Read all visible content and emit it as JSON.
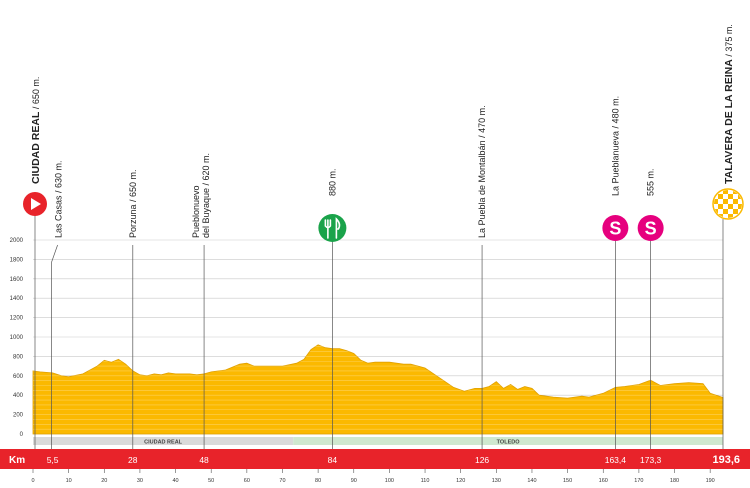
{
  "chart_data": {
    "type": "area",
    "xlabel": "Km",
    "x_ticks": [
      0,
      10,
      20,
      30,
      40,
      50,
      60,
      70,
      80,
      90,
      100,
      110,
      120,
      130,
      140,
      150,
      160,
      170,
      180,
      190
    ],
    "y_ticks": [
      0,
      200,
      400,
      600,
      800,
      1000,
      1200,
      1400,
      1600,
      1800,
      2000
    ],
    "xlim": [
      0,
      193.6
    ],
    "ylim": [
      0,
      2000
    ],
    "grid": true,
    "fill_color": "#fbb900",
    "profile": {
      "km": [
        0,
        2,
        5.5,
        8,
        10,
        14,
        18,
        20,
        22,
        24,
        26,
        28,
        30,
        32,
        34,
        36,
        38,
        40,
        44,
        46,
        48,
        50,
        54,
        58,
        60,
        62,
        66,
        70,
        74,
        76,
        78,
        80,
        82,
        84,
        86,
        88,
        90,
        92,
        94,
        96,
        100,
        104,
        106,
        110,
        114,
        118,
        121,
        124,
        126,
        128,
        130,
        132,
        134,
        136,
        138,
        140,
        142,
        146,
        150,
        154,
        156,
        160,
        163.4,
        166,
        170,
        173.3,
        176,
        180,
        184,
        188,
        190,
        193.6
      ],
      "elevation": [
        650,
        640,
        630,
        600,
        590,
        620,
        700,
        760,
        740,
        770,
        720,
        650,
        610,
        600,
        620,
        610,
        630,
        620,
        620,
        610,
        620,
        640,
        660,
        720,
        730,
        700,
        700,
        700,
        730,
        770,
        870,
        920,
        890,
        880,
        880,
        860,
        830,
        760,
        730,
        740,
        740,
        720,
        720,
        680,
        580,
        480,
        440,
        470,
        470,
        490,
        540,
        470,
        510,
        460,
        490,
        470,
        400,
        380,
        370,
        390,
        380,
        420,
        480,
        490,
        510,
        555,
        500,
        520,
        530,
        520,
        420,
        375
      ]
    },
    "points": [
      {
        "km": 0,
        "name": "CIUDAD REAL",
        "altitude": "650 m.",
        "type": "start"
      },
      {
        "km": 5.5,
        "name": "Las Casas",
        "altitude": "630 m.",
        "type": "town"
      },
      {
        "km": 28,
        "name": "Porzuna",
        "altitude": "650 m.",
        "type": "town"
      },
      {
        "km": 48,
        "name_lines": [
          "Pueblonuevo",
          "del Buyaque"
        ],
        "altitude": "620 m.",
        "type": "town"
      },
      {
        "km": 84,
        "name": "",
        "altitude": "880 m.",
        "type": "feed"
      },
      {
        "km": 126,
        "name": "La Puebla de Montalbán",
        "altitude": "470 m.",
        "type": "town"
      },
      {
        "km": 163.4,
        "name": "La Pueblanueva",
        "altitude": "480 m.",
        "type": "sprint"
      },
      {
        "km": 173.3,
        "name": "",
        "altitude": "555 m.",
        "type": "sprint"
      },
      {
        "km": 193.6,
        "name": "TALAVERA DE LA REINA",
        "altitude": "375 m.",
        "type": "finish"
      }
    ],
    "km_bar": {
      "label": "Km",
      "marks": [
        {
          "km": 5.5,
          "label": "5,5"
        },
        {
          "km": 28,
          "label": "28"
        },
        {
          "km": 48,
          "label": "48"
        },
        {
          "km": 84,
          "label": "84"
        },
        {
          "km": 126,
          "label": "126"
        },
        {
          "km": 163.4,
          "label": "163,4"
        },
        {
          "km": 173.3,
          "label": "173,3"
        },
        {
          "km": 193.6,
          "label": "193,6"
        }
      ]
    },
    "regions": [
      {
        "name": "CIUDAD REAL",
        "from_km": 0,
        "to_km": 73,
        "color": "#dadada"
      },
      {
        "name": "TOLEDO",
        "from_km": 73,
        "to_km": 193.6,
        "color": "#cfe8cf"
      }
    ],
    "icons": {
      "start": "play-triangle-icon",
      "feed": "fork-knife-icon",
      "sprint": "sprint-s-icon",
      "finish": "checkered-flag-icon"
    },
    "colors": {
      "start": "#e8232a",
      "feed": "#1aa34a",
      "sprint": "#e6007e",
      "finish": "#fbb900",
      "km_bar": "#e8232a"
    }
  }
}
